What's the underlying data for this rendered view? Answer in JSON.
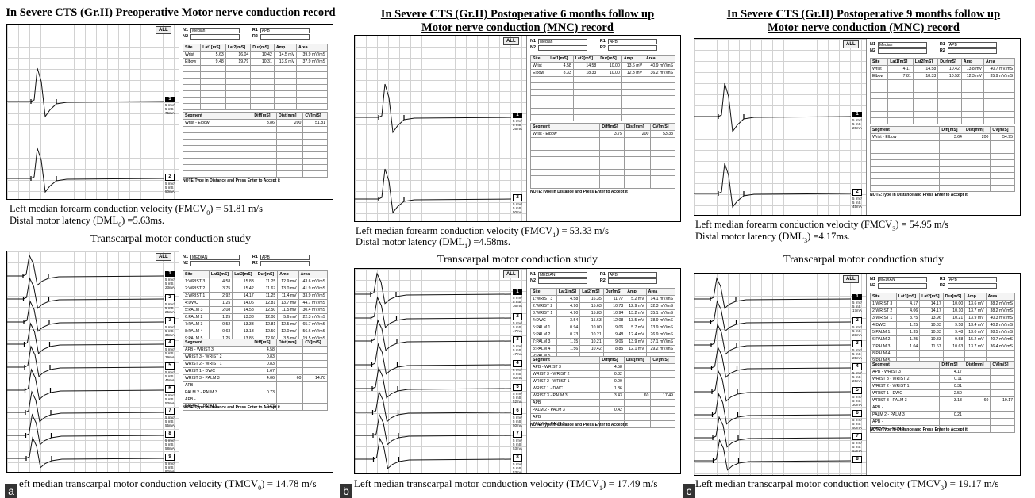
{
  "panels": [
    {
      "letter": "a",
      "heading_lines": [
        "In Severe CTS (Gr.II) Preoperative Motor nerve conduction record"
      ],
      "fmcv": {
        "prefix": "Left median forearm conduction velocity (FMCV",
        "sub": "0",
        "suffix": ") = 51.81 m/s"
      },
      "dml": {
        "prefix": "Distal motor latency (DML",
        "sub": "0",
        "suffix": ") =5.63ms."
      },
      "transcarpal_title": "Transcarpal motor conduction study",
      "tmcv": {
        "prefix": "eft median transcarpal motor conduction velocity (TMCV",
        "sub": "0",
        "suffix": ") = 14.78 m/s"
      },
      "mnc": {
        "all_label": "ALL",
        "n1": "Median",
        "r1": "APB",
        "n2": "",
        "r2": "",
        "labels": {
          "n1": "N1",
          "n2": "N2",
          "r1": "R1",
          "r2": "R2"
        },
        "site_headers": [
          "Site",
          "Lat1[mS]",
          "Lat2[mS]",
          "Dur[mS]",
          "Amp",
          "Area"
        ],
        "sites": [
          [
            "Wrist",
            "5.63",
            "16.04",
            "10.42",
            "14.5 mV",
            "39.9 mV/mS"
          ],
          [
            "Elbow",
            "9.48",
            "19.79",
            "10.31",
            "13.9 mV",
            "37.9 mV/mS"
          ]
        ],
        "segment_headers": [
          "Segment",
          "Diff[mS]",
          "Dist[mm]",
          "CV[m/S]"
        ],
        "segments": [
          [
            "Wrist - Elbow",
            "3.86",
            "200",
            "51.81"
          ]
        ],
        "note": "NOTE:Type in Distance and Press Enter to Accept it",
        "channels": [
          {
            "n": "1",
            "lines": [
              "5 mV/",
              "5 mS",
              "75mA"
            ]
          },
          {
            "n": "2",
            "lines": [
              "5 mV/",
              "5 mS",
              "50mA"
            ]
          }
        ]
      },
      "trans": {
        "all_label": "ALL",
        "n1": "MEDIAN",
        "r1": "APB",
        "n2": "",
        "r2": "",
        "labels": {
          "n1": "N1",
          "n2": "N2",
          "r1": "R1",
          "r2": "R2"
        },
        "site_headers": [
          "Site",
          "Lat1[mS]",
          "Lat2[mS]",
          "Dur[mS]",
          "Amp",
          "Area"
        ],
        "sites": [
          [
            "1:WRIST 3",
            "4.58",
            "15.83",
            "11.25",
            "12.9 mV",
            "43.6 mV/mS"
          ],
          [
            "2:WRIST 2",
            "3.75",
            "15.42",
            "11.67",
            "13.0 mV",
            "41.9 mV/mS"
          ],
          [
            "3:WRIST 1",
            "2.92",
            "14.17",
            "11.25",
            "11.4 mV",
            "33.9 mV/mS"
          ],
          [
            "4:DWC",
            "1.25",
            "14.06",
            "12.81",
            "13.7 mV",
            "44.7 mV/mS"
          ],
          [
            "5:PALM 3",
            "2.08",
            "14.58",
            "12.50",
            "11.5 mV",
            "30.4 mV/mS"
          ],
          [
            "6:PALM 2",
            "1.25",
            "13.33",
            "12.08",
            "5.6 mV",
            "22.3 mV/mS"
          ],
          [
            "7:PALM 3",
            "0.52",
            "13.33",
            "12.81",
            "12.5 mV",
            "65.7 mV/mS"
          ],
          [
            "8:PALM 4",
            "0.63",
            "13.13",
            "12.50",
            "12.0 mV",
            "56.6 mV/mS"
          ],
          [
            "9:PALM 5",
            "1.25",
            "13.85",
            "12.60",
            "3.5 mV",
            "19.5 mV/mS"
          ]
        ],
        "segment_headers": [
          "Segment",
          "Diff[mS]",
          "Dist[mm]",
          "CV[m/S]"
        ],
        "segments": [
          [
            "APB - WRIST 3",
            "4.58",
            "",
            ""
          ],
          [
            "WRIST 3 - WRIST 2",
            "0.83",
            "",
            ""
          ],
          [
            "WRIST 2 - WRIST 1",
            "0.83",
            "",
            ""
          ],
          [
            "WRIST 1 - DWC",
            "1.67",
            "",
            ""
          ],
          [
            "WRIST 3 - PALM 3",
            "4.06",
            "60",
            "14.78"
          ],
          [
            "APB -",
            "",
            "",
            ""
          ],
          [
            "PALM 2 - PALM 3",
            "0.73",
            "",
            ""
          ],
          [
            "APB -",
            "",
            "",
            ""
          ],
          [
            "PALM 4 - PALM 5",
            "0.63",
            "",
            ""
          ]
        ],
        "note": "NOTE:Type in Distance and Press Enter to Accept it",
        "channels": [
          {
            "n": "1",
            "lines": [
              "5 mV/",
              "5 mS",
              "23mA"
            ]
          },
          {
            "n": "2",
            "lines": [
              "5 mV/",
              "5 mS",
              "25mA"
            ]
          },
          {
            "n": "3",
            "lines": [
              "5 mV/",
              "5 mS",
              "36mA"
            ]
          },
          {
            "n": "4",
            "lines": [
              "5 mV/",
              "5 mS",
              "39mA"
            ]
          },
          {
            "n": "5",
            "lines": [
              "5 mV/",
              "5 mS",
              "45mA"
            ]
          },
          {
            "n": "6",
            "lines": [
              "5 mV/",
              "5 mS",
              "53mA"
            ]
          },
          {
            "n": "7",
            "lines": [
              "5 mV/",
              "5 mS",
              "55mA"
            ]
          },
          {
            "n": "8",
            "lines": [
              "5 mV/",
              "5 mS",
              "58mA"
            ]
          },
          {
            "n": "9",
            "lines": [
              "5 mV/",
              "5 mS",
              "82mA"
            ]
          }
        ]
      }
    },
    {
      "letter": "b",
      "heading_lines": [
        "In Severe CTS (Gr.II) Postoperative 6 months follow up",
        "Motor nerve conduction (MNC) record"
      ],
      "fmcv": {
        "prefix": "Left median forearm conduction velocity (FMCV",
        "sub": "1",
        "suffix": ") = 53.33 m/s"
      },
      "dml": {
        "prefix": "Distal motor latency (DML",
        "sub": "1",
        "suffix": ") =4.58ms."
      },
      "transcarpal_title": "Transcarpal motor conduction study",
      "tmcv": {
        "prefix": "Left median transcarpal motor conduction velocity (TMCV",
        "sub": "1",
        "suffix": ") = 17.49 m/s"
      },
      "mnc": {
        "all_label": "ALL",
        "n1": "Median",
        "r1": "APB",
        "n2": "",
        "r2": "",
        "labels": {
          "n1": "N1",
          "n2": "N2",
          "r1": "R1",
          "r2": "R2"
        },
        "site_headers": [
          "Site",
          "Lat1[mS]",
          "Lat2[mS]",
          "Dur[mS]",
          "Amp",
          "Area"
        ],
        "sites": [
          [
            "Wrist",
            "4.58",
            "14.58",
            "10.00",
            "13.6 mV",
            "40.9 mV/mS"
          ],
          [
            "Elbow",
            "8.33",
            "18.33",
            "10.00",
            "12.3 mV",
            "36.2 mV/mS"
          ]
        ],
        "segment_headers": [
          "Segment",
          "Diff[mS]",
          "Dist[mm]",
          "CV[m/S]"
        ],
        "segments": [
          [
            "Wrist - Elbow",
            "3.75",
            "200",
            "53.33"
          ]
        ],
        "note": "NOTE:Type in Distance and Press Enter to Accept it",
        "channels": [
          {
            "n": "1",
            "lines": [
              "5 mV/",
              "5 mS",
              "26mA"
            ]
          },
          {
            "n": "2",
            "lines": [
              "5 mV/",
              "5 mS",
              "50mA"
            ]
          }
        ]
      },
      "trans": {
        "all_label": "ALL",
        "n1": "MEDIAN",
        "r1": "APB",
        "n2": "",
        "r2": "",
        "labels": {
          "n1": "N1",
          "n2": "N2",
          "r1": "R1",
          "r2": "R2"
        },
        "site_headers": [
          "Site",
          "Lat1[mS]",
          "Lat2[mS]",
          "Dur[mS]",
          "Amp",
          "Area"
        ],
        "sites": [
          [
            "1:WRIST 3",
            "4.58",
            "16.35",
            "11.77",
            "5.2 mV",
            "14.1 mV/mS"
          ],
          [
            "2:WRIST 2",
            "4.90",
            "15.63",
            "10.73",
            "12.9 mV",
            "32.3 mV/mS"
          ],
          [
            "3:WRIST 1",
            "4.90",
            "15.83",
            "10.94",
            "13.2 mV",
            "35.1 mV/mS"
          ],
          [
            "4:DWC",
            "3.54",
            "15.63",
            "12.08",
            "13.5 mV",
            "38.9 mV/mS"
          ],
          [
            "5:PALM 1",
            "0.94",
            "10.00",
            "9.06",
            "5.7 mV",
            "13.9 mV/mS"
          ],
          [
            "6:PALM 2",
            "0.73",
            "10.21",
            "9.48",
            "12.4 mV",
            "26.9 mV/mS"
          ],
          [
            "7:PALM 3",
            "1.15",
            "10.21",
            "9.06",
            "13.9 mV",
            "37.1 mV/mS"
          ],
          [
            "8:PALM 4",
            "1.56",
            "10.42",
            "8.85",
            "12.1 mV",
            "29.2 mV/mS"
          ],
          [
            "9:PALM 5",
            "",
            "",
            "",
            "",
            ""
          ]
        ],
        "segment_headers": [
          "Segment",
          "Diff[mS]",
          "Dist[mm]",
          "CV[m/S]"
        ],
        "segments": [
          [
            "APB - WRIST 3",
            "4.58",
            "",
            ""
          ],
          [
            "WRIST 3 - WRIST 2",
            "0.32",
            "",
            ""
          ],
          [
            "WRIST 2 - WRIST 1",
            "0.00",
            "",
            ""
          ],
          [
            "WRIST 1 - DWC",
            "1.36",
            "",
            ""
          ],
          [
            "WRIST 3 - PALM 3",
            "3.43",
            "60",
            "17.49"
          ],
          [
            "APB",
            "",
            "",
            ""
          ],
          [
            "PALM 2 - PALM 3",
            "0.42",
            "",
            ""
          ],
          [
            "APB",
            "",
            "",
            ""
          ],
          [
            "PALM 4 - PALM 5",
            "",
            "",
            ""
          ]
        ],
        "note": "NOTE:Type in Distance and Press Enter to Accept it",
        "channels": [
          {
            "n": "1",
            "lines": [
              "5 mV/",
              "5 mS",
              "36mA"
            ]
          },
          {
            "n": "2",
            "lines": [
              "5 mV/",
              "5 mS",
              "47mA"
            ]
          },
          {
            "n": "3",
            "lines": [
              "5 mV/",
              "5 mS",
              "47mA"
            ]
          },
          {
            "n": "4",
            "lines": [
              "5 mV/",
              "5 mS",
              "50mA"
            ]
          },
          {
            "n": "5",
            "lines": [
              "5 mV/",
              "5 mS",
              "52mA"
            ]
          },
          {
            "n": "6",
            "lines": [
              "5 mV/",
              "5 mS",
              "50mA"
            ]
          },
          {
            "n": "7",
            "lines": [
              "5 mV/",
              "5 mS",
              "53mA"
            ]
          },
          {
            "n": "8",
            "lines": [
              "5 mV/",
              "5 mS",
              "53mA"
            ]
          }
        ]
      }
    },
    {
      "letter": "c",
      "heading_lines": [
        "In Severe CTS (Gr.II) Postoperative 9 months follow up",
        "Motor nerve conduction (MNC) record"
      ],
      "fmcv": {
        "prefix": "Left median forearm conduction velocity (FMCV",
        "sub": "3",
        "suffix": ") = 54.95 m/s"
      },
      "dml": {
        "prefix": "Distal motor latency (DML",
        "sub": "3",
        "suffix": ") =4.17ms."
      },
      "transcarpal_title": "Transcarpal motor conduction study",
      "tmcv": {
        "prefix": "Left median transcarpal motor conduction velocity (TMCV",
        "sub": "3",
        "suffix": ") = 19.17 m/s"
      },
      "mnc": {
        "all_label": "ALL",
        "n1": "Median",
        "r1": "APB",
        "n2": "",
        "r2": "",
        "labels": {
          "n1": "N1",
          "n2": "N2",
          "r1": "R1",
          "r2": "R2"
        },
        "site_headers": [
          "Site",
          "Lat1[mS]",
          "Lat2[mS]",
          "Dur[mS]",
          "Amp",
          "Area"
        ],
        "sites": [
          [
            "Wrist",
            "4.17",
            "14.58",
            "10.42",
            "13.8 mV",
            "40.7 mV/mS"
          ],
          [
            "Elbow",
            "7.81",
            "18.33",
            "10.52",
            "12.3 mV",
            "35.9 mV/mS"
          ]
        ],
        "segment_headers": [
          "Segment",
          "Diff[mS]",
          "Dist[mm]",
          "CV[m/S]"
        ],
        "segments": [
          [
            "Wrist - Elbow",
            "3.64",
            "200",
            "54.95"
          ]
        ],
        "note": "NOTE:Type in Distance and Press Enter to Accept it",
        "channels": [
          {
            "n": "1",
            "lines": [
              "5 mV/",
              "5 mS",
              "20mA"
            ]
          },
          {
            "n": "2",
            "lines": [
              "5 mV/",
              "5 mS",
              "45mA"
            ]
          }
        ]
      },
      "trans": {
        "all_label": "ALL",
        "n1": "MEDIAN",
        "r1": "APB",
        "n2": "",
        "r2": "",
        "labels": {
          "n1": "N1",
          "n2": "N2",
          "r1": "R1",
          "r2": "R2"
        },
        "site_headers": [
          "Site",
          "Lat1[mS]",
          "Lat2[mS]",
          "Dur[mS]",
          "Amp",
          "Area"
        ],
        "sites": [
          [
            "1:WRIST 3",
            "4.17",
            "14.17",
            "10.00",
            "13.6 mV",
            "38.2 mV/mS"
          ],
          [
            "2:WRIST 2",
            "4.06",
            "14.17",
            "10.10",
            "13.7 mV",
            "38.2 mV/mS"
          ],
          [
            "3:WRIST 1",
            "3.75",
            "13.96",
            "10.21",
            "13.9 mV",
            "40.3 mV/mS"
          ],
          [
            "4:DWC",
            "1.25",
            "10.83",
            "9.58",
            "13.4 mV",
            "40.2 mV/mS"
          ],
          [
            "5:PALM 1",
            "1.35",
            "10.83",
            "9.48",
            "13.0 mV",
            "38.5 mV/mS"
          ],
          [
            "6:PALM 2",
            "1.25",
            "10.83",
            "9.58",
            "15.2 mV",
            "40.7 mV/mS"
          ],
          [
            "7:PALM 3",
            "1.04",
            "11.67",
            "10.63",
            "13.7 mV",
            "36.4 mV/mS"
          ],
          [
            "8:PALM 4",
            "",
            "",
            "",
            "",
            ""
          ],
          [
            "9:PALM 5",
            "",
            "",
            "",
            "",
            ""
          ]
        ],
        "segment_headers": [
          "Segment",
          "Diff[mS]",
          "Dist[mm]",
          "CV[m/S]"
        ],
        "segments": [
          [
            "APB - WRIST 3",
            "4.17",
            "",
            ""
          ],
          [
            "WRIST 3 - WRIST 2",
            "0.11",
            "",
            ""
          ],
          [
            "WRIST 2 - WRIST 1",
            "0.31",
            "",
            ""
          ],
          [
            "WRIST 1 - DWC",
            "2.50",
            "",
            ""
          ],
          [
            "WRIST 3 - PALM 3",
            "3.13",
            "60",
            "19.17"
          ],
          [
            "APB -",
            "",
            "",
            ""
          ],
          [
            "PALM 2 - PALM 3",
            "0.21",
            "",
            ""
          ],
          [
            "APB -",
            "",
            "",
            ""
          ],
          [
            "PALM 4 - PALM 5",
            "",
            "",
            ""
          ]
        ],
        "note": "NOTE:Type in Distance and Press Enter to Accept it",
        "channels": [
          {
            "n": "1",
            "lines": [
              "5 mV/",
              "5 mS",
              "17mA"
            ]
          },
          {
            "n": "2",
            "lines": [
              "5 mV/",
              "5 mS",
              "23mA"
            ]
          },
          {
            "n": "3",
            "lines": [
              "5 mV/",
              "5 mS",
              "25mA"
            ]
          },
          {
            "n": "4",
            "lines": [
              "5 mV/",
              "5 mS",
              "26mA"
            ]
          },
          {
            "n": "5",
            "lines": [
              "5 mV/",
              "5 mS",
              "30mA"
            ]
          },
          {
            "n": "6",
            "lines": [
              "5 mV/",
              "5 mS",
              "50mA"
            ]
          },
          {
            "n": "7",
            "lines": [
              "5 mV/",
              "5 mS",
              "53mA"
            ]
          },
          {
            "n": "8",
            "lines": [
              "",
              "",
              ""
            ]
          }
        ]
      }
    }
  ]
}
